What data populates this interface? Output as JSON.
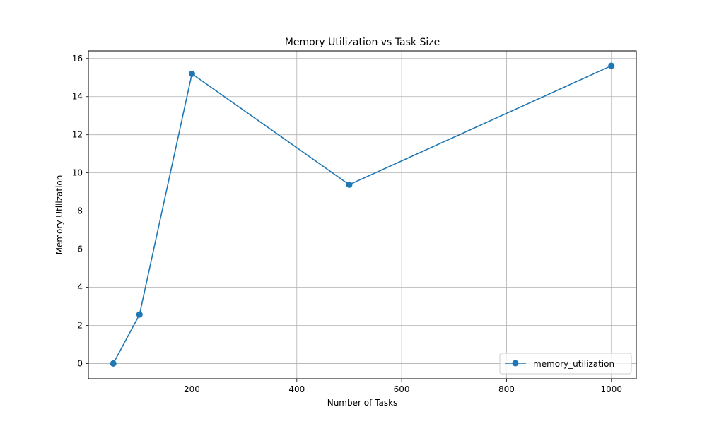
{
  "chart_data": {
    "type": "line",
    "title": "Memory Utilization vs Task Size",
    "xlabel": "Number of Tasks",
    "ylabel": "Memory Utilization",
    "xlim": [
      2.5,
      1047.5
    ],
    "ylim": [
      -0.8,
      16.4
    ],
    "xticks": [
      200,
      400,
      600,
      800,
      1000
    ],
    "yticks": [
      0,
      2,
      4,
      6,
      8,
      10,
      12,
      14,
      16
    ],
    "grid": true,
    "legend_position": "lower-right",
    "series": [
      {
        "name": "memory_utilization",
        "color": "#1f77b4",
        "marker": "circle",
        "x": [
          50,
          100,
          200,
          500,
          1000
        ],
        "y": [
          0.0,
          2.57,
          15.2,
          9.38,
          15.62
        ]
      }
    ]
  }
}
